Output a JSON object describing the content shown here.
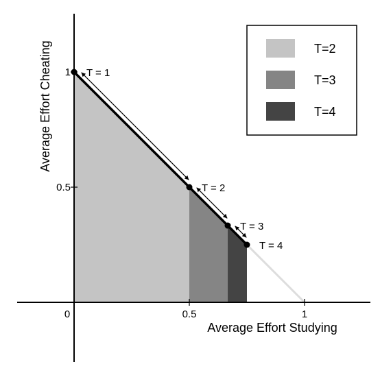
{
  "chart_data": {
    "type": "area",
    "xlabel": "Average Effort Studying",
    "ylabel": "Average Effort Cheating",
    "xlim": [
      -0.3,
      1.3
    ],
    "ylim": [
      -0.25,
      1.25
    ],
    "x_ticks": [
      {
        "value": 0,
        "label": "0"
      },
      {
        "value": 0.5,
        "label": "0.5"
      },
      {
        "value": 1,
        "label": "1"
      }
    ],
    "y_ticks": [
      {
        "value": 0.5,
        "label": "0.5"
      },
      {
        "value": 1,
        "label": "1"
      }
    ],
    "frontier": {
      "x": [
        0,
        1
      ],
      "y": [
        1,
        0
      ],
      "color": "#dddddd"
    },
    "regions": [
      {
        "name": "T=2",
        "x_from": 0,
        "x_to": 0.5,
        "color": "#c4c4c4"
      },
      {
        "name": "T=3",
        "x_from": 0.5,
        "x_to": 0.6667,
        "color": "#858585"
      },
      {
        "name": "T=4",
        "x_from": 0.6667,
        "x_to": 0.75,
        "color": "#444444"
      }
    ],
    "points": [
      {
        "label": "T = 1",
        "x": 0,
        "y": 1
      },
      {
        "label": "T = 2",
        "x": 0.5,
        "y": 0.5
      },
      {
        "label": "T = 3",
        "x": 0.6667,
        "y": 0.3333
      },
      {
        "label": "T = 4",
        "x": 0.75,
        "y": 0.25
      }
    ],
    "legend": {
      "placement": "top-right",
      "entries": [
        {
          "label": "T=2",
          "color": "#c4c4c4"
        },
        {
          "label": "T=3",
          "color": "#858585"
        },
        {
          "label": "T=4",
          "color": "#444444"
        }
      ]
    },
    "grid": false
  }
}
